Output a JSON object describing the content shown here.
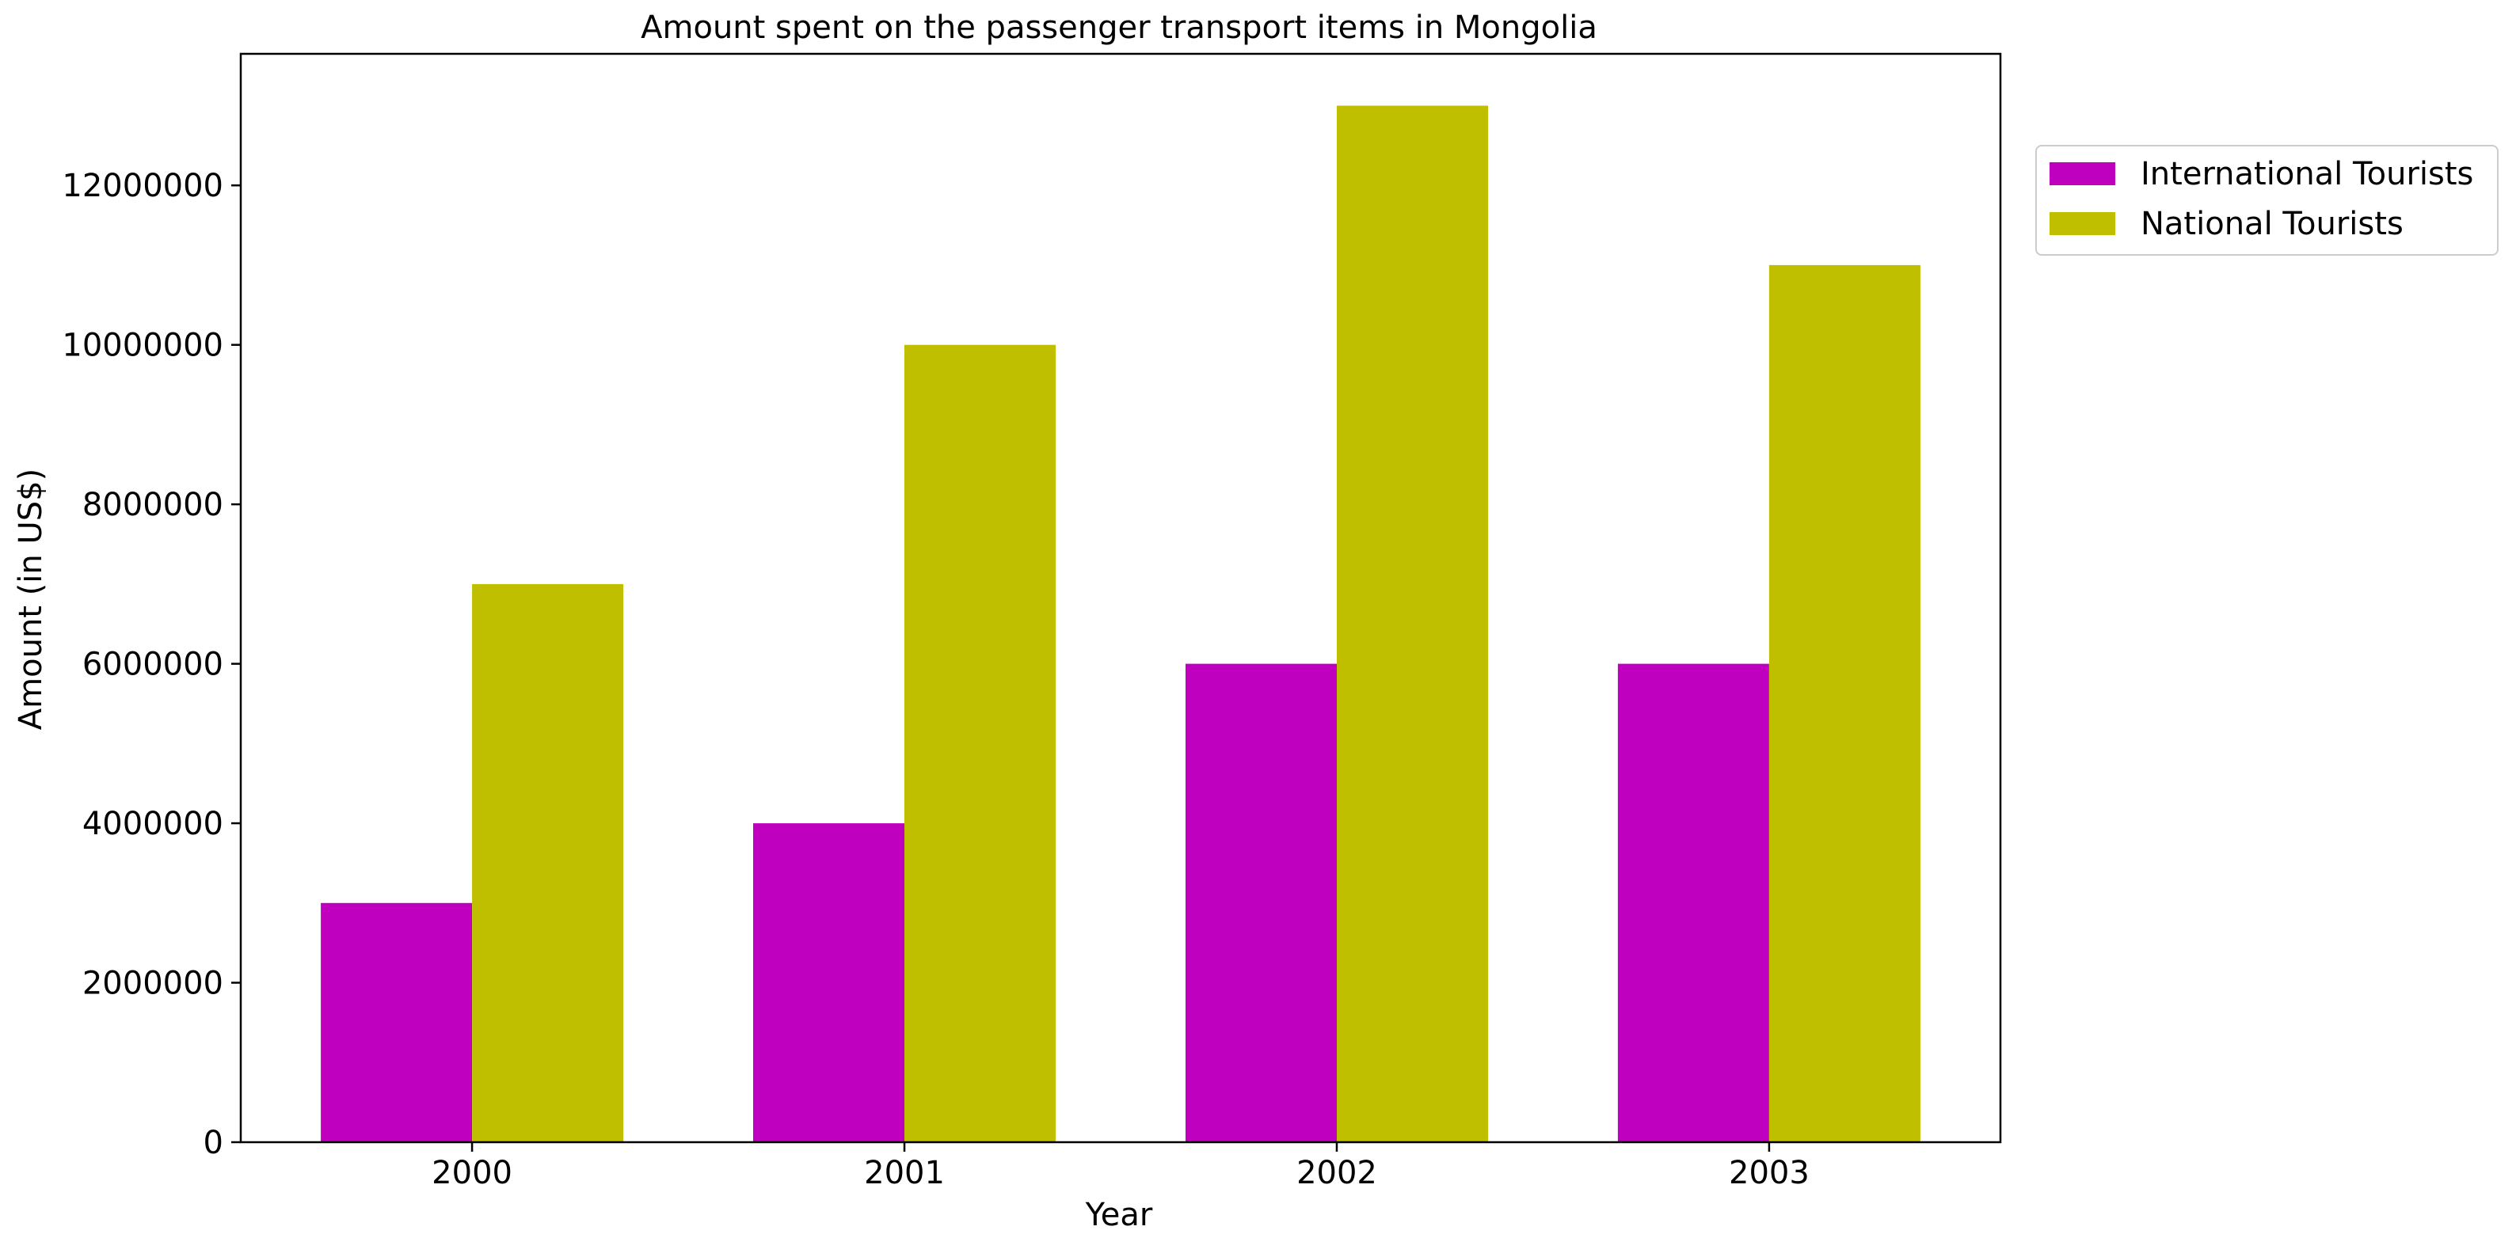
{
  "chart_data": {
    "type": "bar",
    "title": "Amount spent on the passenger transport items in Mongolia",
    "xlabel": "Year",
    "ylabel": "Amount (in US$)",
    "categories": [
      "2000",
      "2001",
      "2002",
      "2003"
    ],
    "series": [
      {
        "name": "International Tourists",
        "color": "#bf00bf",
        "values": [
          3000000,
          4000000,
          6000000,
          6000000
        ]
      },
      {
        "name": "National Tourists",
        "color": "#bfbf00",
        "values": [
          7000000,
          10000000,
          13000000,
          11000000
        ]
      }
    ],
    "ylim": [
      0,
      13650000
    ],
    "yticks": [
      "0",
      "2000000",
      "4000000",
      "6000000",
      "8000000",
      "10000000",
      "12000000"
    ],
    "grid": false,
    "legend_position": "outside-right-top"
  }
}
